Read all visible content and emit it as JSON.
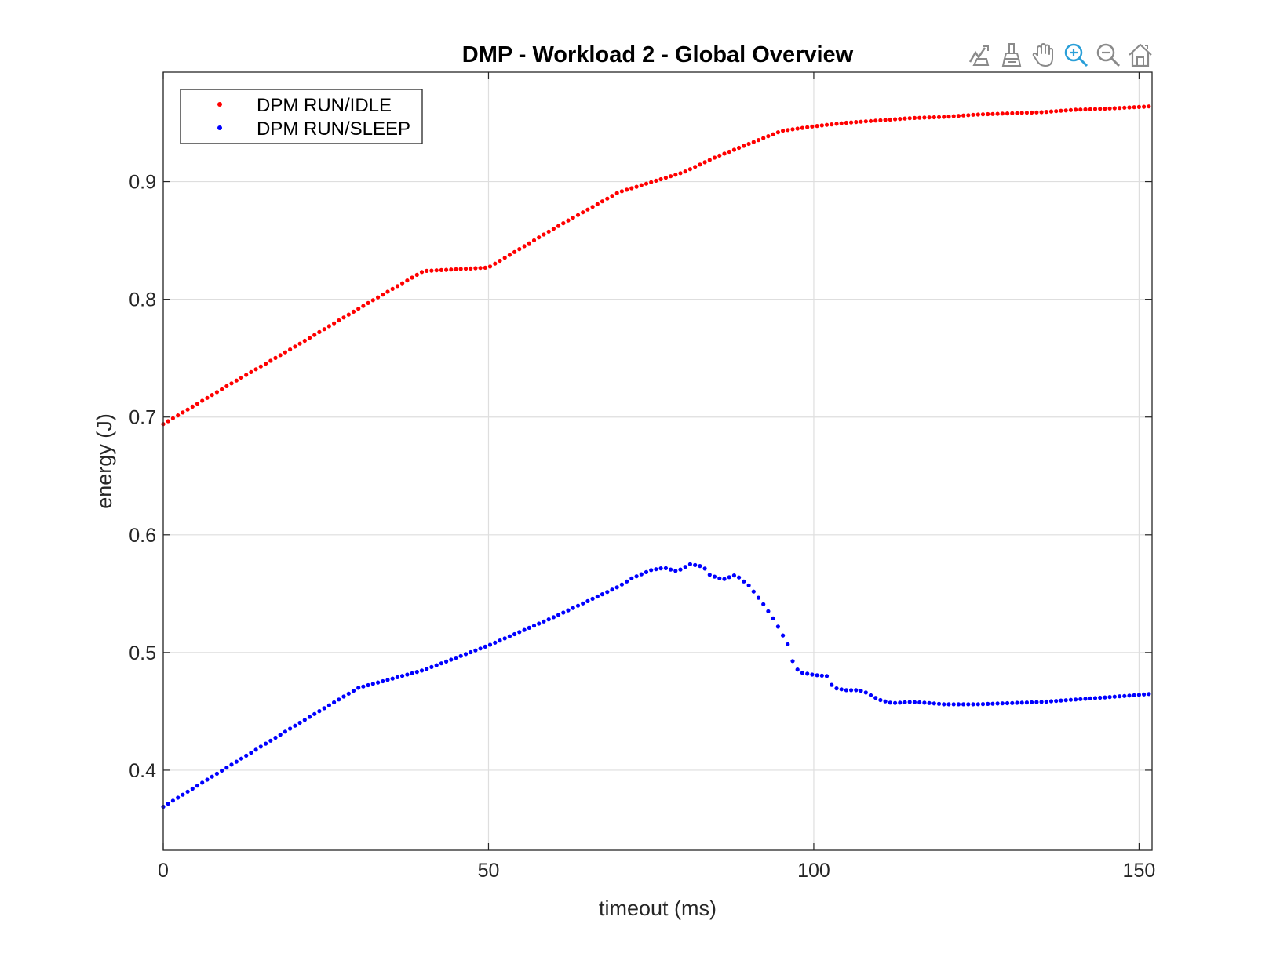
{
  "toolbar": [
    {
      "name": "data-tips-icon",
      "color": "#8a8a8a"
    },
    {
      "name": "brush-icon",
      "color": "#8a8a8a"
    },
    {
      "name": "pan-hand-icon",
      "color": "#8a8a8a"
    },
    {
      "name": "zoom-in-icon",
      "color": "#2a9fd8"
    },
    {
      "name": "zoom-out-icon",
      "color": "#8a8a8a"
    },
    {
      "name": "home-icon",
      "color": "#8a8a8a"
    }
  ],
  "chart_data": {
    "type": "scatter",
    "title": "DMP - Workload 2 - Global Overview",
    "xlabel": "timeout (ms)",
    "ylabel": "energy (J)",
    "xlim": [
      0,
      152
    ],
    "ylim": [
      0.332,
      0.993
    ],
    "xticks": [
      0,
      50,
      100,
      150
    ],
    "yticks": [
      0.4,
      0.5,
      0.6,
      0.7,
      0.8,
      0.9
    ],
    "grid": true,
    "legend": "top-left",
    "series": [
      {
        "name": "DPM RUN/IDLE",
        "color": "#ff0000",
        "points": [
          [
            0,
            0.694
          ],
          [
            10,
            0.727
          ],
          [
            20,
            0.759
          ],
          [
            30,
            0.792
          ],
          [
            40,
            0.824
          ],
          [
            50,
            0.827
          ],
          [
            60,
            0.86
          ],
          [
            70,
            0.891
          ],
          [
            80,
            0.908
          ],
          [
            85,
            0.921
          ],
          [
            90,
            0.932
          ],
          [
            95,
            0.943
          ],
          [
            100,
            0.947
          ],
          [
            105,
            0.95
          ],
          [
            110,
            0.952
          ],
          [
            115,
            0.954
          ],
          [
            120,
            0.955
          ],
          [
            125,
            0.957
          ],
          [
            130,
            0.958
          ],
          [
            135,
            0.959
          ],
          [
            140,
            0.961
          ],
          [
            145,
            0.962
          ],
          [
            152,
            0.964
          ]
        ]
      },
      {
        "name": "DPM RUN/SLEEP",
        "color": "#0000ff",
        "points": [
          [
            0,
            0.369
          ],
          [
            10,
            0.403
          ],
          [
            20,
            0.437
          ],
          [
            30,
            0.47
          ],
          [
            40,
            0.485
          ],
          [
            50,
            0.506
          ],
          [
            55,
            0.518
          ],
          [
            60,
            0.53
          ],
          [
            65,
            0.543
          ],
          [
            70,
            0.556
          ],
          [
            72,
            0.563
          ],
          [
            75,
            0.57
          ],
          [
            77,
            0.572
          ],
          [
            79,
            0.569
          ],
          [
            81,
            0.575
          ],
          [
            83,
            0.573
          ],
          [
            84,
            0.566
          ],
          [
            86,
            0.562
          ],
          [
            88,
            0.566
          ],
          [
            90,
            0.557
          ],
          [
            92,
            0.543
          ],
          [
            94,
            0.527
          ],
          [
            96,
            0.507
          ],
          [
            97,
            0.488
          ],
          [
            98,
            0.483
          ],
          [
            100,
            0.481
          ],
          [
            102,
            0.48
          ],
          [
            103,
            0.47
          ],
          [
            105,
            0.468
          ],
          [
            107,
            0.468
          ],
          [
            108,
            0.466
          ],
          [
            110,
            0.46
          ],
          [
            112,
            0.457
          ],
          [
            115,
            0.458
          ],
          [
            118,
            0.457
          ],
          [
            120,
            0.456
          ],
          [
            125,
            0.456
          ],
          [
            130,
            0.457
          ],
          [
            135,
            0.458
          ],
          [
            140,
            0.46
          ],
          [
            145,
            0.462
          ],
          [
            150,
            0.464
          ],
          [
            152,
            0.465
          ]
        ]
      }
    ]
  }
}
